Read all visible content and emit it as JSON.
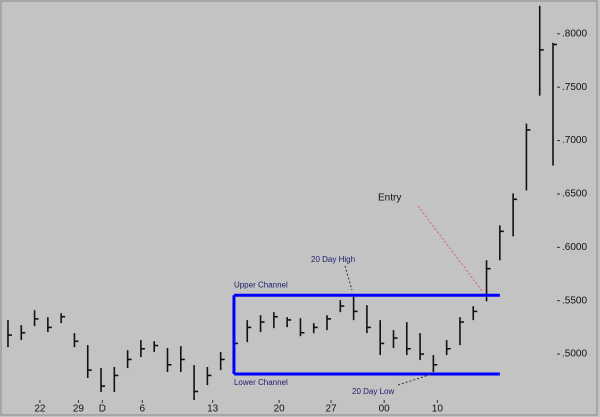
{
  "chart_data": {
    "type": "hlc",
    "x": [
      0,
      1,
      2,
      3,
      4,
      5,
      6,
      7,
      8,
      9,
      10,
      11,
      12,
      13,
      14,
      15,
      16,
      17,
      18,
      19,
      20,
      21,
      22,
      23,
      24,
      25,
      26,
      27,
      28,
      29,
      30,
      31,
      32,
      33,
      34,
      35,
      36,
      37,
      38,
      39,
      40,
      41
    ],
    "series": [
      {
        "name": "High",
        "values": [
          0.5318,
          0.5271,
          0.5411,
          0.5346,
          0.5383,
          0.5196,
          0.5084,
          0.4869,
          0.4879,
          0.5037,
          0.5131,
          0.5121,
          0.5056,
          0.5075,
          0.4897,
          0.4879,
          0.5019,
          0.5196,
          0.5318,
          0.5364,
          0.5393,
          0.5346,
          0.5336,
          0.529,
          0.5364,
          0.5505,
          0.5542,
          0.5458,
          0.5318,
          0.5224,
          0.5299,
          0.5196,
          0.4991,
          0.5131,
          0.5346,
          0.5449,
          0.5879,
          0.6206,
          0.6505,
          0.7159,
          0.8262,
          0.7916
        ]
      },
      {
        "name": "Low",
        "values": [
          0.5065,
          0.5131,
          0.5262,
          0.5206,
          0.529,
          0.5065,
          0.4776,
          0.4645,
          0.4645,
          0.4869,
          0.4972,
          0.5019,
          0.4832,
          0.4832,
          0.457,
          0.471,
          0.485,
          0.4991,
          0.5112,
          0.5206,
          0.5243,
          0.5252,
          0.5168,
          0.5196,
          0.5224,
          0.5393,
          0.5318,
          0.5196,
          0.4991,
          0.5056,
          0.4991,
          0.4944,
          0.4832,
          0.4991,
          0.5084,
          0.5318,
          0.5495,
          0.5879,
          0.6103,
          0.6533,
          0.7421,
          0.6766
        ]
      },
      {
        "name": "Close",
        "values": [
          0.5178,
          0.52,
          0.533,
          0.525,
          0.535,
          0.512,
          0.485,
          0.47,
          0.48,
          0.495,
          0.505,
          0.508,
          0.49,
          0.495,
          0.465,
          0.48,
          0.495,
          0.51,
          0.525,
          0.53,
          0.535,
          0.532,
          0.52,
          0.525,
          0.533,
          0.545,
          0.54,
          0.525,
          0.51,
          0.515,
          0.505,
          0.5,
          0.49,
          0.505,
          0.53,
          0.54,
          0.58,
          0.615,
          0.645,
          0.71,
          0.785,
          0.79
        ]
      }
    ],
    "bar_color": "#111111",
    "xlim": [
      -0.6,
      41.3
    ],
    "xticks": [
      {
        "value": 2.4,
        "label": "22"
      },
      {
        "value": 5.3,
        "label": "29"
      },
      {
        "value": 7.1,
        "label": "D"
      },
      {
        "value": 10.1,
        "label": "6"
      },
      {
        "value": 15.4,
        "label": "13"
      },
      {
        "value": 20.4,
        "label": "20"
      },
      {
        "value": 24.3,
        "label": "27"
      },
      {
        "value": 28.3,
        "label": "00"
      },
      {
        "value": 32.3,
        "label": "10"
      }
    ],
    "ylim": [
      0.457,
      0.827
    ],
    "yticks": [
      {
        "value": 0.5,
        "label": ".5000"
      },
      {
        "value": 0.55,
        "label": ".5500"
      },
      {
        "value": 0.6,
        "label": ".6000"
      },
      {
        "value": 0.65,
        "label": ".6500"
      },
      {
        "value": 0.7,
        "label": ".7000"
      },
      {
        "value": 0.75,
        "label": ".7500"
      },
      {
        "value": 0.8,
        "label": ".8000"
      }
    ],
    "grid": false,
    "channel": {
      "upper": 0.5551,
      "lower": 0.4813,
      "start": 17,
      "end": 37,
      "color": "#0000ff"
    },
    "annotations": {
      "upper_channel": "Upper Channel",
      "lower_channel": "Lower Channel",
      "high": "20 Day High",
      "low": "20 Day Low",
      "entry": "Entry"
    },
    "entry_color": "#e05a5a"
  }
}
